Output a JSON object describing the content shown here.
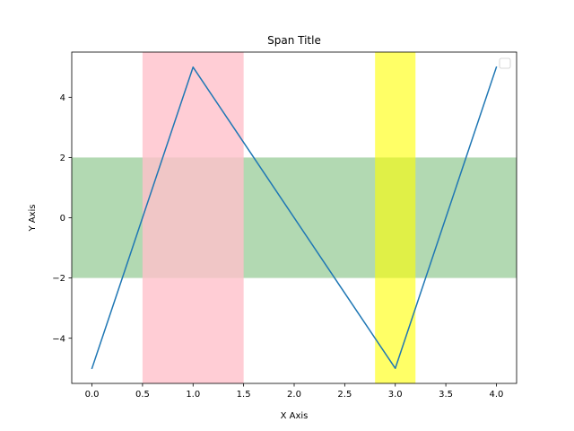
{
  "chart_data": {
    "type": "line",
    "title": "Span Title",
    "xlabel": "X Axis",
    "ylabel": "Y Axis",
    "xlim": [
      -0.2,
      4.2
    ],
    "ylim": [
      -5.5,
      5.5
    ],
    "xticks": [
      0.0,
      0.5,
      1.0,
      1.5,
      2.0,
      2.5,
      3.0,
      3.5,
      4.0
    ],
    "xtick_labels": [
      "0.0",
      "0.5",
      "1.0",
      "1.5",
      "2.0",
      "2.5",
      "3.0",
      "3.5",
      "4.0"
    ],
    "yticks": [
      -4,
      -2,
      0,
      2,
      4
    ],
    "ytick_labels": [
      "−4",
      "−2",
      "0",
      "2",
      "4"
    ],
    "grid": false,
    "legend": {
      "placement": "upper right",
      "entries": []
    },
    "series": [
      {
        "x": [
          0,
          1,
          3,
          4
        ],
        "y": [
          -5,
          5,
          -5,
          5
        ],
        "color": "#1f77b4"
      }
    ],
    "vertical_spans": [
      {
        "xmin": 0.5,
        "xmax": 1.5,
        "color": "#ffc0cb",
        "opacity": 0.8
      },
      {
        "xmin": 2.8,
        "xmax": 3.2,
        "color": "#ffff00",
        "opacity": 0.6
      }
    ],
    "horizontal_spans": [
      {
        "ymin": -2,
        "ymax": 2,
        "color": "#008000",
        "opacity": 0.3
      }
    ]
  }
}
